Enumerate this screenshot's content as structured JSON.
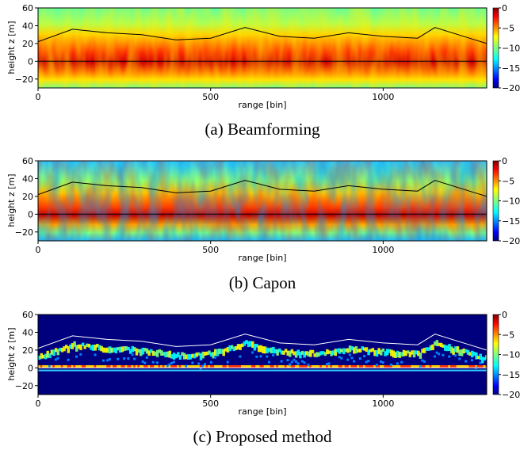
{
  "colors": {
    "colormap": [
      "#00007f",
      "#0000ff",
      "#007fff",
      "#00ffff",
      "#7fff7f",
      "#ffff00",
      "#ff7f00",
      "#ff0000",
      "#7f0000"
    ],
    "boundary_black": "#000000",
    "boundary_white": "#ffffff",
    "proposed_background": "#00007f"
  },
  "chart_data": [
    {
      "type": "heatmap",
      "caption": "(a) Beamforming",
      "xlabel": "range [bin]",
      "ylabel": "height z [m]",
      "xlim": [
        0,
        1300
      ],
      "ylim": [
        -30,
        60
      ],
      "xticks": [
        "0",
        "500",
        "1000"
      ],
      "yticks": [
        "60",
        "40",
        "20",
        "0",
        "−20"
      ],
      "colorbar": {
        "range": [
          -20,
          0
        ],
        "ticks": [
          "0",
          "−5",
          "−10",
          "−15",
          "−20"
        ]
      },
      "boundary_lines": [
        {
          "name": "canopy top",
          "color": "black",
          "points": [
            [
              0,
              22
            ],
            [
              100,
              36
            ],
            [
              200,
              32
            ],
            [
              300,
              30
            ],
            [
              400,
              24
            ],
            [
              500,
              26
            ],
            [
              600,
              38
            ],
            [
              700,
              28
            ],
            [
              800,
              26
            ],
            [
              900,
              32
            ],
            [
              1000,
              28
            ],
            [
              1100,
              26
            ],
            [
              1150,
              38
            ],
            [
              1250,
              26
            ],
            [
              1300,
              20
            ]
          ]
        },
        {
          "name": "ground",
          "color": "black",
          "points": [
            [
              0,
              0
            ],
            [
              1300,
              0
            ]
          ]
        }
      ]
    },
    {
      "type": "heatmap",
      "caption": "(b) Capon",
      "xlabel": "range [bin]",
      "ylabel": "height z [m]",
      "xlim": [
        0,
        1300
      ],
      "ylim": [
        -30,
        60
      ],
      "xticks": [
        "0",
        "500",
        "1000"
      ],
      "yticks": [
        "60",
        "40",
        "20",
        "0",
        "−20"
      ],
      "colorbar": {
        "range": [
          -20,
          0
        ],
        "ticks": [
          "0",
          "−5",
          "−10",
          "−15",
          "−20"
        ]
      },
      "boundary_lines": [
        {
          "name": "canopy top",
          "color": "black",
          "points": [
            [
              0,
              22
            ],
            [
              100,
              36
            ],
            [
              200,
              32
            ],
            [
              300,
              30
            ],
            [
              400,
              24
            ],
            [
              500,
              26
            ],
            [
              600,
              38
            ],
            [
              700,
              28
            ],
            [
              800,
              26
            ],
            [
              900,
              32
            ],
            [
              1000,
              28
            ],
            [
              1100,
              26
            ],
            [
              1150,
              38
            ],
            [
              1250,
              26
            ],
            [
              1300,
              20
            ]
          ]
        },
        {
          "name": "ground",
          "color": "black",
          "points": [
            [
              0,
              0
            ],
            [
              1300,
              0
            ]
          ]
        }
      ]
    },
    {
      "type": "heatmap",
      "caption": "(c) Proposed method",
      "xlabel": "range [bin]",
      "ylabel": "height z [m]",
      "xlim": [
        0,
        1300
      ],
      "ylim": [
        -30,
        60
      ],
      "xticks": [
        "0",
        "500",
        "1000"
      ],
      "yticks": [
        "60",
        "40",
        "20",
        "0",
        "−20"
      ],
      "colorbar": {
        "range": [
          -20,
          0
        ],
        "ticks": [
          "0",
          "−5",
          "−10",
          "−15",
          "−20"
        ]
      },
      "boundary_lines": [
        {
          "name": "canopy top",
          "color": "white",
          "points": [
            [
              0,
              22
            ],
            [
              100,
              36
            ],
            [
              200,
              32
            ],
            [
              300,
              30
            ],
            [
              400,
              24
            ],
            [
              500,
              26
            ],
            [
              600,
              38
            ],
            [
              700,
              28
            ],
            [
              800,
              26
            ],
            [
              900,
              32
            ],
            [
              1000,
              28
            ],
            [
              1100,
              26
            ],
            [
              1150,
              38
            ],
            [
              1250,
              26
            ],
            [
              1300,
              20
            ]
          ]
        },
        {
          "name": "ground",
          "color": "white",
          "points": [
            [
              0,
              0
            ],
            [
              1300,
              0
            ]
          ]
        }
      ]
    }
  ]
}
